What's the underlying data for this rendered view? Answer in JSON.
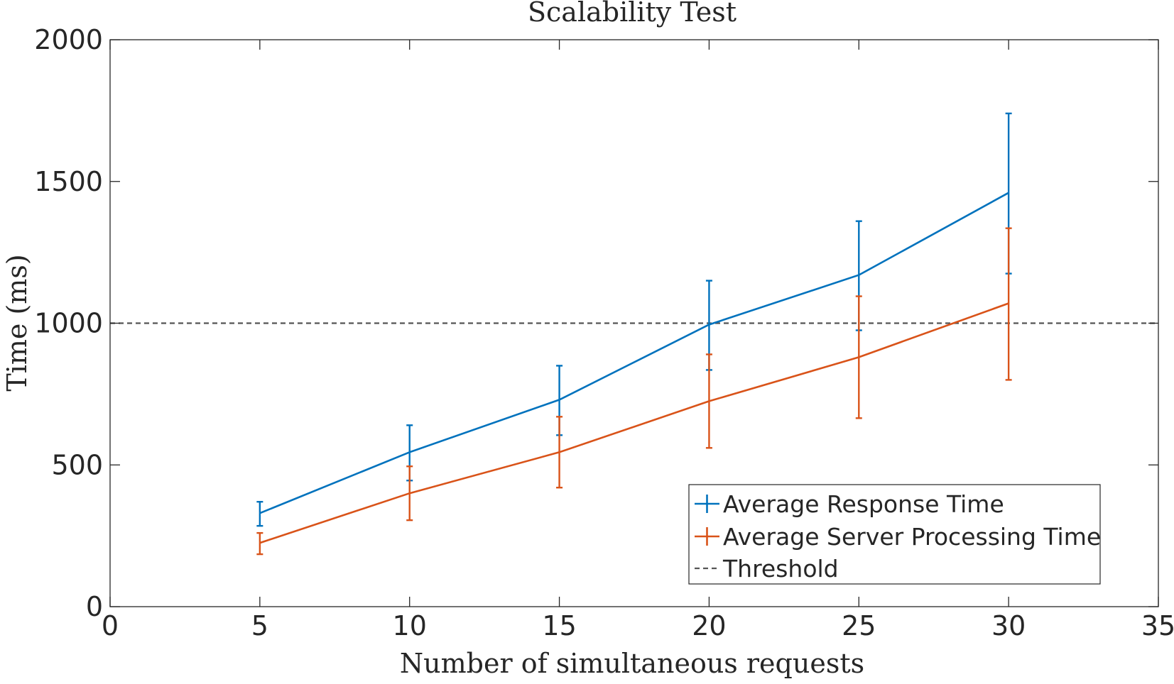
{
  "chart_data": {
    "type": "line",
    "title": "Scalability Test",
    "xlabel": "Number of simultaneous requests",
    "ylabel": "Time (ms)",
    "xlim": [
      0,
      35
    ],
    "ylim": [
      0,
      2000
    ],
    "xticks": [
      0,
      5,
      10,
      15,
      20,
      25,
      30,
      35
    ],
    "yticks": [
      0,
      500,
      1000,
      1500,
      2000
    ],
    "grid": false,
    "legend_position": "bottom-right",
    "x": [
      5,
      10,
      15,
      20,
      25,
      30
    ],
    "series": [
      {
        "name": "Average Response Time",
        "color": "#0072BD",
        "values": [
          330,
          545,
          730,
          995,
          1170,
          1460
        ],
        "error_low": [
          285,
          445,
          605,
          835,
          975,
          1175
        ],
        "error_high": [
          370,
          640,
          850,
          1150,
          1360,
          1740
        ]
      },
      {
        "name": "Average Server Processing Time",
        "color": "#D95319",
        "values": [
          225,
          400,
          545,
          725,
          880,
          1070
        ],
        "error_low": [
          185,
          305,
          420,
          560,
          665,
          800
        ],
        "error_high": [
          260,
          495,
          670,
          890,
          1095,
          1335
        ]
      }
    ],
    "threshold": {
      "name": "Threshold",
      "value": 1000,
      "color": "#555555",
      "style": "dashed"
    }
  }
}
